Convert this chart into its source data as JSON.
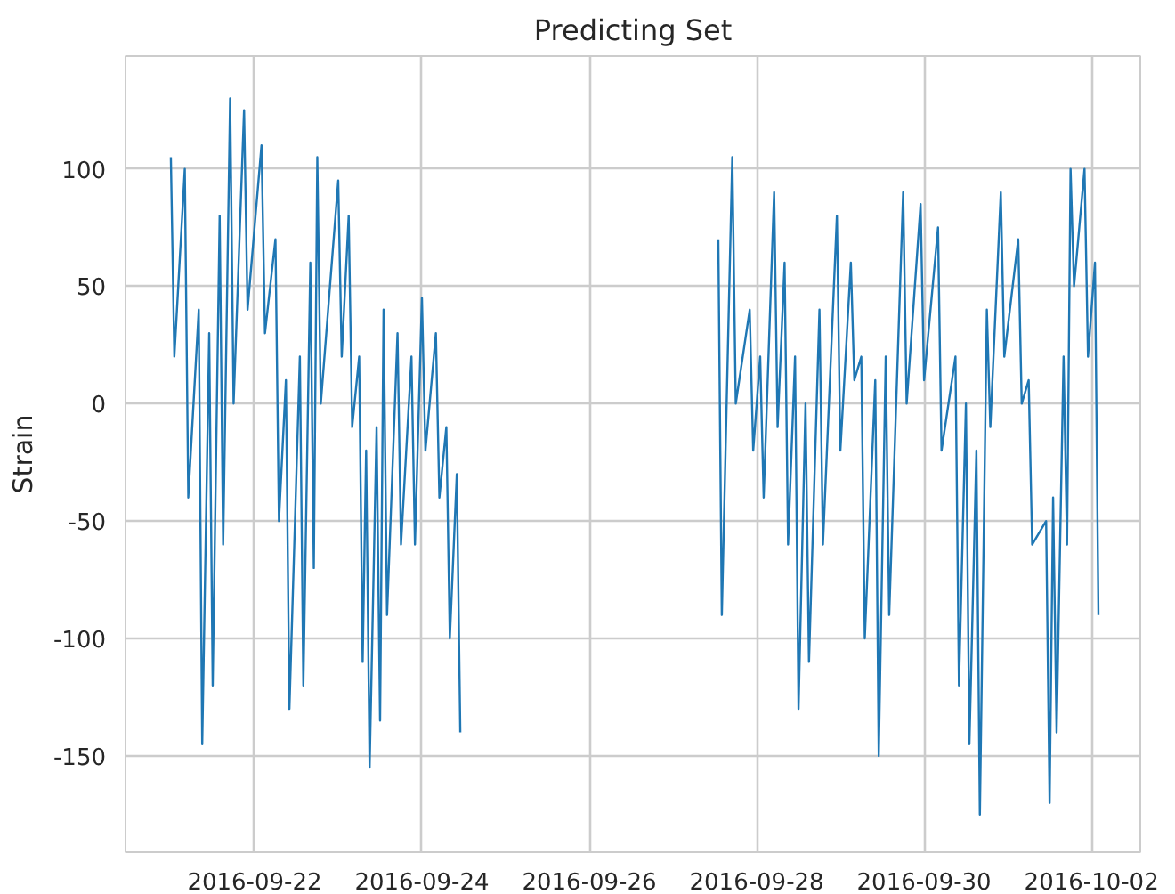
{
  "chart_data": {
    "type": "line",
    "title": "Predicting Set",
    "ylabel": "Strain",
    "grid": true,
    "line_style": "solid",
    "marker": "none",
    "xlim": [
      "2016-09-20T11:00",
      "2016-10-02T14:00"
    ],
    "ylim": [
      -191,
      148
    ],
    "xticks": [
      "2016-09-22",
      "2016-09-24",
      "2016-09-26",
      "2016-09-28",
      "2016-09-30",
      "2016-10-02"
    ],
    "yticks": [
      -150,
      -100,
      -50,
      0,
      50,
      100
    ],
    "series": [
      {
        "color": "#1f77b4",
        "x": [
          "2016-09-21T00:00",
          "2016-09-21T01:00",
          "2016-09-21T04:00",
          "2016-09-21T05:00",
          "2016-09-21T08:00",
          "2016-09-21T09:00",
          "2016-09-21T11:00",
          "2016-09-21T12:00",
          "2016-09-21T14:00",
          "2016-09-21T15:00",
          "2016-09-21T17:00",
          "2016-09-21T18:00",
          "2016-09-21T21:00",
          "2016-09-21T22:00",
          "2016-09-22T02:00",
          "2016-09-22T03:00",
          "2016-09-22T06:00",
          "2016-09-22T07:00",
          "2016-09-22T09:00",
          "2016-09-22T10:00",
          "2016-09-22T13:00",
          "2016-09-22T14:00",
          "2016-09-22T16:00",
          "2016-09-22T17:00",
          "2016-09-22T18:00",
          "2016-09-22T19:00",
          "2016-09-23T00:00",
          "2016-09-23T01:00",
          "2016-09-23T03:00",
          "2016-09-23T04:00",
          "2016-09-23T06:00",
          "2016-09-23T07:00",
          "2016-09-23T08:00",
          "2016-09-23T09:00",
          "2016-09-23T11:00",
          "2016-09-23T12:00",
          "2016-09-23T13:00",
          "2016-09-23T14:00",
          "2016-09-23T17:00",
          "2016-09-23T18:00",
          "2016-09-23T21:00",
          "2016-09-23T22:00",
          "2016-09-24T00:00",
          "2016-09-24T01:00",
          "2016-09-24T04:00",
          "2016-09-24T05:00",
          "2016-09-24T07:00",
          "2016-09-24T08:00",
          "2016-09-24T10:00",
          "2016-09-24T11:00",
          "2016-09-26T00:00",
          "2016-09-27T13:00",
          "2016-09-27T14:00",
          "2016-09-27T17:00",
          "2016-09-27T18:00",
          "2016-09-27T22:00",
          "2016-09-27T23:00",
          "2016-09-28T01:00",
          "2016-09-28T02:00",
          "2016-09-28T05:00",
          "2016-09-28T06:00",
          "2016-09-28T08:00",
          "2016-09-28T09:00",
          "2016-09-28T11:00",
          "2016-09-28T12:00",
          "2016-09-28T14:00",
          "2016-09-28T15:00",
          "2016-09-28T18:00",
          "2016-09-28T19:00",
          "2016-09-28T23:00",
          "2016-09-29T00:00",
          "2016-09-29T03:00",
          "2016-09-29T04:00",
          "2016-09-29T06:00",
          "2016-09-29T07:00",
          "2016-09-29T10:00",
          "2016-09-29T11:00",
          "2016-09-29T13:00",
          "2016-09-29T14:00",
          "2016-09-29T18:00",
          "2016-09-29T19:00",
          "2016-09-29T23:00",
          "2016-09-30T00:00",
          "2016-09-30T04:00",
          "2016-09-30T05:00",
          "2016-09-30T09:00",
          "2016-09-30T10:00",
          "2016-09-30T12:00",
          "2016-09-30T13:00",
          "2016-09-30T15:00",
          "2016-09-30T16:00",
          "2016-09-30T18:00",
          "2016-09-30T19:00",
          "2016-09-30T22:00",
          "2016-09-30T23:00",
          "2016-10-01T03:00",
          "2016-10-01T04:00",
          "2016-10-01T06:00",
          "2016-10-01T07:00",
          "2016-10-01T11:00",
          "2016-10-01T12:00",
          "2016-10-01T13:00",
          "2016-10-01T14:00",
          "2016-10-01T16:00",
          "2016-10-01T17:00",
          "2016-10-01T18:00",
          "2016-10-01T19:00",
          "2016-10-01T22:00",
          "2016-10-01T23:00",
          "2016-10-02T01:00",
          "2016-10-02T02:00"
        ],
        "values": [
          105,
          20,
          100,
          -40,
          40,
          -145,
          30,
          -120,
          80,
          -60,
          130,
          0,
          125,
          40,
          110,
          30,
          70,
          -50,
          10,
          -130,
          20,
          -120,
          60,
          -70,
          105,
          0,
          95,
          20,
          80,
          -10,
          20,
          -110,
          -20,
          -155,
          -10,
          -135,
          40,
          -90,
          30,
          -60,
          20,
          -60,
          45,
          -20,
          30,
          -40,
          -10,
          -100,
          -30,
          -140,
          null,
          70,
          -90,
          105,
          0,
          40,
          -20,
          20,
          -40,
          90,
          -10,
          60,
          -60,
          20,
          -130,
          0,
          -110,
          40,
          -60,
          80,
          -20,
          60,
          10,
          20,
          -100,
          10,
          -150,
          20,
          -90,
          90,
          0,
          85,
          10,
          75,
          -20,
          20,
          -120,
          0,
          -145,
          -20,
          -175,
          40,
          -10,
          90,
          20,
          70,
          0,
          10,
          -60,
          -50,
          -170,
          -40,
          -140,
          20,
          -60,
          100,
          50,
          100,
          20,
          60,
          -90
        ]
      }
    ]
  }
}
